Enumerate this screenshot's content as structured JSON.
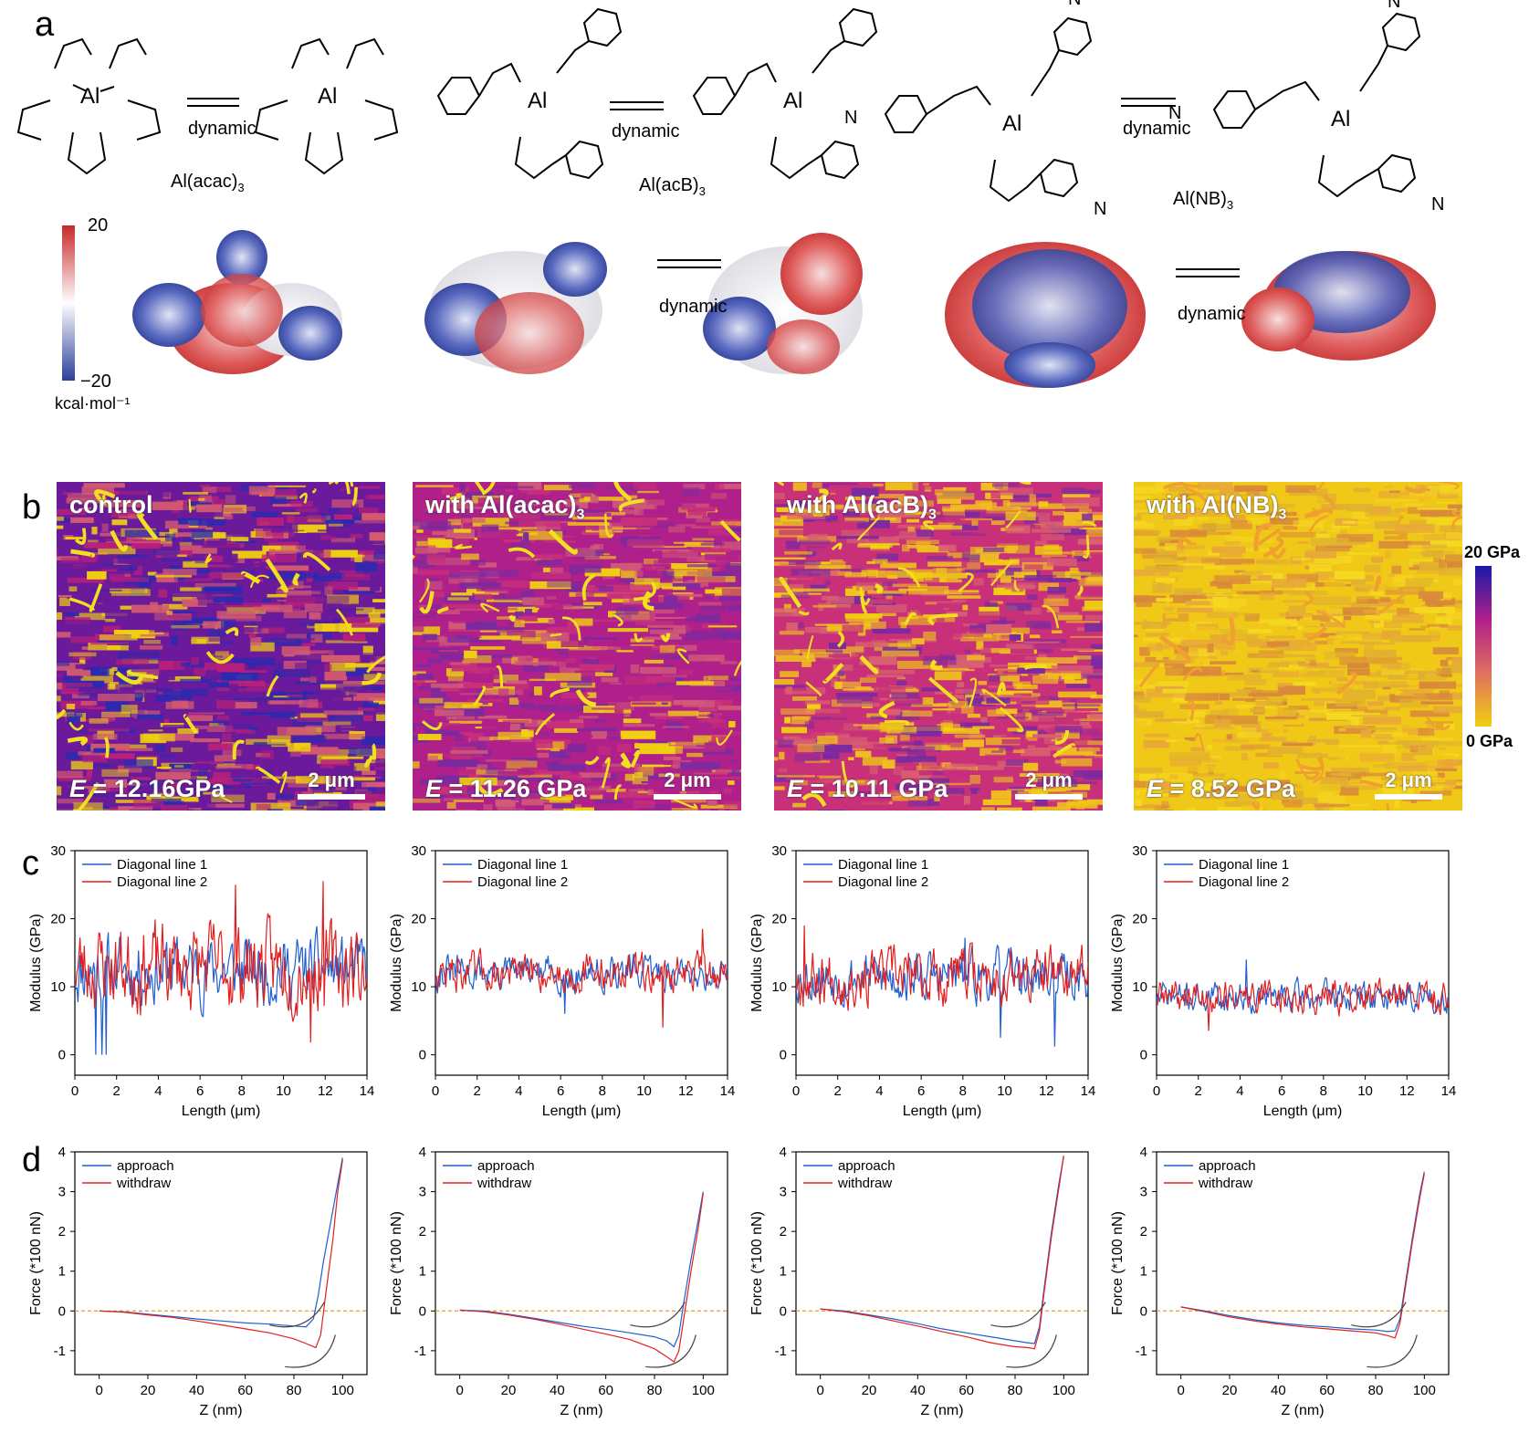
{
  "panel_a": {
    "letter": "a",
    "molecules": [
      {
        "name": "Al(acac)",
        "sub": "3"
      },
      {
        "name": "Al(acB)",
        "sub": "3"
      },
      {
        "name": "Al(NB)",
        "sub": "3"
      }
    ],
    "dynamic_label": "dynamic",
    "colorbar": {
      "max": "20",
      "min": "−20",
      "unit": "kcal·mol⁻¹",
      "colors": [
        "#c82828",
        "#ffffff",
        "#2a3f9a"
      ]
    }
  },
  "panel_b": {
    "letter": "b",
    "maps": [
      {
        "title": "control",
        "sub": "",
        "e_prefix": "E",
        "e_value": " = 12.16GPa",
        "scale": "2 μm"
      },
      {
        "title": "with Al(acac)",
        "sub": "3",
        "e_prefix": "E",
        "e_value": " = 11.26 GPa",
        "scale": "2 μm"
      },
      {
        "title": "with Al(acB)",
        "sub": "3",
        "e_prefix": "E",
        "e_value": " = 10.11 GPa",
        "scale": "2 μm"
      },
      {
        "title": "with Al(NB)",
        "sub": "3",
        "e_prefix": "E",
        "e_value": " = 8.52 GPa",
        "scale": "2 μm"
      }
    ],
    "colorbar": {
      "max": "20 GPa",
      "min": "0 GPa",
      "colors": [
        "#1a1aa8",
        "#b0208a",
        "#e07060",
        "#f0d010"
      ]
    }
  },
  "panel_c": {
    "letter": "c",
    "xlabel": "Length (μm)",
    "ylabel": "Modulus (GPa)",
    "legend": [
      "Diagonal line 1",
      "Diagonal line 2"
    ]
  },
  "panel_d": {
    "letter": "d",
    "xlabel": "Z (nm)",
    "ylabel": "Force (*100 nN)",
    "legend": [
      "approach",
      "withdraw"
    ]
  },
  "chart_data": [
    {
      "type": "line",
      "panel": "c1",
      "xlabel": "Length (μm)",
      "ylabel": "Modulus (GPa)",
      "xlim": [
        0,
        14
      ],
      "ylim": [
        -3,
        30
      ],
      "xticks": [
        0,
        2,
        4,
        6,
        8,
        10,
        12,
        14
      ],
      "yticks": [
        0,
        10,
        20,
        30
      ],
      "series": [
        {
          "name": "Diagonal line 1",
          "color": "#1f5fd0",
          "mean": 12.5,
          "amp": 3.5,
          "seed": 11,
          "dips": [
            [
              1.0,
              0
            ],
            [
              1.3,
              0
            ],
            [
              1.5,
              0
            ]
          ]
        },
        {
          "name": "Diagonal line 2",
          "color": "#e02020",
          "mean": 13.0,
          "amp": 4.5,
          "seed": 23,
          "peaks": [
            [
              7.7,
              25
            ],
            [
              11.9,
              25.5
            ],
            [
              11.3,
              1.8
            ]
          ]
        }
      ]
    },
    {
      "type": "line",
      "panel": "c2",
      "xlabel": "Length (μm)",
      "ylabel": "Modulus (GPa)",
      "xlim": [
        0,
        14
      ],
      "ylim": [
        -3,
        30
      ],
      "xticks": [
        0,
        2,
        4,
        6,
        8,
        10,
        12,
        14
      ],
      "yticks": [
        0,
        10,
        20,
        30
      ],
      "series": [
        {
          "name": "Diagonal line 1",
          "color": "#1f5fd0",
          "mean": 12.0,
          "amp": 1.8,
          "seed": 31,
          "dips": [
            [
              6.2,
              6
            ]
          ]
        },
        {
          "name": "Diagonal line 2",
          "color": "#e02020",
          "mean": 12.0,
          "amp": 2.0,
          "seed": 47,
          "peaks": [
            [
              12.8,
              18.5
            ],
            [
              10.9,
              4
            ]
          ]
        }
      ]
    },
    {
      "type": "line",
      "panel": "c3",
      "xlabel": "Length (μm)",
      "ylabel": "Modulus (GPa)",
      "xlim": [
        0,
        14
      ],
      "ylim": [
        -3,
        30
      ],
      "xticks": [
        0,
        2,
        4,
        6,
        8,
        10,
        12,
        14
      ],
      "yticks": [
        0,
        10,
        20,
        30
      ],
      "series": [
        {
          "name": "Diagonal line 1",
          "color": "#1f5fd0",
          "mean": 11.5,
          "amp": 2.6,
          "seed": 53,
          "dips": [
            [
              9.8,
              2.5
            ],
            [
              12.4,
              1.2
            ]
          ],
          "peaks": [
            [
              8.1,
              17.2
            ]
          ]
        },
        {
          "name": "Diagonal line 2",
          "color": "#e02020",
          "mean": 11.5,
          "amp": 3.0,
          "seed": 67,
          "peaks": [
            [
              0.4,
              19
            ]
          ]
        }
      ]
    },
    {
      "type": "line",
      "panel": "c4",
      "xlabel": "Length (μm)",
      "ylabel": "Modulus (GPa)",
      "xlim": [
        0,
        14
      ],
      "ylim": [
        -3,
        30
      ],
      "xticks": [
        0,
        2,
        4,
        6,
        8,
        10,
        12,
        14
      ],
      "yticks": [
        0,
        10,
        20,
        30
      ],
      "series": [
        {
          "name": "Diagonal line 1",
          "color": "#1f5fd0",
          "mean": 8.5,
          "amp": 1.6,
          "seed": 71,
          "peaks": [
            [
              4.3,
              14
            ]
          ]
        },
        {
          "name": "Diagonal line 2",
          "color": "#e02020",
          "mean": 8.5,
          "amp": 1.8,
          "seed": 89,
          "dips": [
            [
              2.5,
              3.5
            ]
          ]
        }
      ]
    },
    {
      "type": "line",
      "panel": "d1",
      "xlabel": "Z (nm)",
      "ylabel": "Force (*100 nN)",
      "xlim": [
        -10,
        110
      ],
      "ylim": [
        -1.6,
        4
      ],
      "xticks": [
        0,
        20,
        40,
        60,
        80,
        100
      ],
      "yticks": [
        -1,
        0,
        1,
        2,
        3,
        4
      ],
      "series": [
        {
          "name": "approach",
          "color": "#1f5fd0",
          "x": [
            0,
            10,
            20,
            30,
            40,
            50,
            60,
            70,
            80,
            85,
            88,
            90,
            92,
            95,
            98,
            100
          ],
          "y": [
            0,
            -0.02,
            -0.08,
            -0.14,
            -0.2,
            -0.25,
            -0.3,
            -0.33,
            -0.38,
            -0.4,
            -0.2,
            0.4,
            1.2,
            2.2,
            3.2,
            3.85
          ]
        },
        {
          "name": "withdraw",
          "color": "#e02020",
          "x": [
            0,
            10,
            20,
            30,
            40,
            50,
            60,
            70,
            80,
            85,
            89,
            91,
            93,
            96,
            98,
            100
          ],
          "y": [
            0,
            -0.03,
            -0.1,
            -0.16,
            -0.25,
            -0.35,
            -0.45,
            -0.55,
            -0.7,
            -0.82,
            -0.92,
            -0.6,
            0.4,
            1.8,
            3.0,
            3.8
          ]
        }
      ]
    },
    {
      "type": "line",
      "panel": "d2",
      "xlabel": "Z (nm)",
      "ylabel": "Force (*100 nN)",
      "xlim": [
        -10,
        110
      ],
      "ylim": [
        -1.6,
        4
      ],
      "xticks": [
        0,
        20,
        40,
        60,
        80,
        100
      ],
      "yticks": [
        -1,
        0,
        1,
        2,
        3,
        4
      ],
      "series": [
        {
          "name": "approach",
          "color": "#1f5fd0",
          "x": [
            0,
            10,
            20,
            30,
            40,
            50,
            60,
            70,
            80,
            85,
            88,
            90,
            92,
            95,
            98,
            100
          ],
          "y": [
            0.02,
            0,
            -0.08,
            -0.18,
            -0.28,
            -0.38,
            -0.46,
            -0.55,
            -0.65,
            -0.75,
            -0.9,
            -0.6,
            0.2,
            1.3,
            2.3,
            3.0
          ]
        },
        {
          "name": "withdraw",
          "color": "#e02020",
          "x": [
            0,
            10,
            20,
            30,
            40,
            50,
            60,
            70,
            80,
            85,
            88,
            90,
            92,
            95,
            98,
            100
          ],
          "y": [
            0.02,
            -0.02,
            -0.1,
            -0.2,
            -0.32,
            -0.45,
            -0.58,
            -0.72,
            -0.95,
            -1.15,
            -1.28,
            -1.0,
            -0.2,
            1.0,
            2.1,
            2.95
          ]
        }
      ]
    },
    {
      "type": "line",
      "panel": "d3",
      "xlabel": "Z (nm)",
      "ylabel": "Force (*100 nN)",
      "xlim": [
        -10,
        110
      ],
      "ylim": [
        -1.6,
        4
      ],
      "xticks": [
        0,
        20,
        40,
        60,
        80,
        100
      ],
      "yticks": [
        -1,
        0,
        1,
        2,
        3,
        4
      ],
      "series": [
        {
          "name": "approach",
          "color": "#1f5fd0",
          "x": [
            0,
            10,
            20,
            30,
            40,
            50,
            60,
            70,
            80,
            85,
            88,
            90,
            92,
            95,
            98,
            100
          ],
          "y": [
            0.05,
            0,
            -0.1,
            -0.2,
            -0.32,
            -0.45,
            -0.55,
            -0.65,
            -0.75,
            -0.8,
            -0.82,
            -0.4,
            0.6,
            2.0,
            3.2,
            3.9
          ]
        },
        {
          "name": "withdraw",
          "color": "#e02020",
          "x": [
            0,
            10,
            20,
            30,
            40,
            50,
            60,
            70,
            80,
            85,
            88,
            90,
            92,
            95,
            98,
            100
          ],
          "y": [
            0.05,
            -0.02,
            -0.12,
            -0.25,
            -0.38,
            -0.52,
            -0.65,
            -0.8,
            -0.9,
            -0.92,
            -0.95,
            -0.5,
            0.5,
            1.9,
            3.1,
            3.9
          ]
        }
      ]
    },
    {
      "type": "line",
      "panel": "d4",
      "xlabel": "Z (nm)",
      "ylabel": "Force (*100 nN)",
      "xlim": [
        -10,
        110
      ],
      "ylim": [
        -1.6,
        4
      ],
      "xticks": [
        0,
        20,
        40,
        60,
        80,
        100
      ],
      "yticks": [
        -1,
        0,
        1,
        2,
        3,
        4
      ],
      "series": [
        {
          "name": "approach",
          "color": "#1f5fd0",
          "x": [
            0,
            10,
            20,
            30,
            40,
            50,
            60,
            70,
            80,
            85,
            88,
            90,
            92,
            95,
            98,
            100
          ],
          "y": [
            0.1,
            0,
            -0.12,
            -0.22,
            -0.3,
            -0.36,
            -0.4,
            -0.45,
            -0.48,
            -0.52,
            -0.5,
            -0.2,
            0.6,
            1.8,
            2.9,
            3.5
          ]
        },
        {
          "name": "withdraw",
          "color": "#e02020",
          "x": [
            0,
            10,
            20,
            30,
            40,
            50,
            60,
            70,
            80,
            85,
            88,
            90,
            92,
            95,
            98,
            100
          ],
          "y": [
            0.1,
            -0.02,
            -0.15,
            -0.25,
            -0.33,
            -0.4,
            -0.45,
            -0.5,
            -0.55,
            -0.62,
            -0.68,
            -0.3,
            0.5,
            1.7,
            2.8,
            3.45
          ]
        }
      ]
    }
  ]
}
